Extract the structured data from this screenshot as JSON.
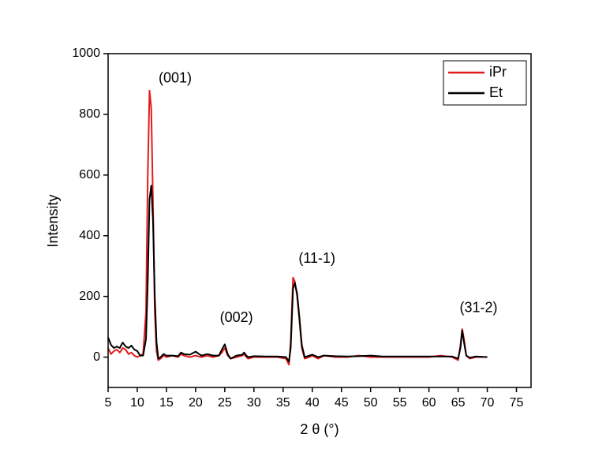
{
  "chart_data": {
    "type": "line",
    "x_label": "2 θ (°)",
    "y_label": "Intensity",
    "xlim": [
      5,
      77.5
    ],
    "ylim": [
      -100,
      1000
    ],
    "xticks": [
      5,
      10,
      15,
      20,
      25,
      30,
      35,
      40,
      45,
      50,
      55,
      60,
      65,
      70,
      75
    ],
    "yticks": [
      0,
      200,
      400,
      600,
      800,
      1000
    ],
    "legend": "upper right",
    "x": [
      5,
      5.5,
      6,
      6.5,
      7,
      7.5,
      8,
      8.5,
      9,
      9.5,
      10,
      10.5,
      11,
      11.5,
      11.8,
      12.1,
      12.4,
      12.7,
      13,
      13.3,
      13.6,
      14,
      14.5,
      15,
      16,
      17,
      17.5,
      18,
      19,
      20,
      21,
      22,
      23,
      24,
      24.5,
      25,
      25.5,
      26,
      27,
      28,
      28.3,
      28.7,
      29,
      30,
      32,
      34,
      35.5,
      36,
      36.3,
      36.7,
      37,
      37.4,
      37.8,
      38.2,
      38.7,
      39.5,
      40,
      41,
      42,
      44,
      46,
      48,
      50,
      52,
      55,
      58,
      60,
      62,
      64,
      65,
      65.4,
      65.7,
      66,
      66.4,
      67,
      68,
      70
    ],
    "series": [
      {
        "name": "iPr",
        "color": "#e31a1c",
        "values": [
          30,
          10,
          20,
          25,
          15,
          30,
          25,
          10,
          15,
          5,
          0,
          5,
          10,
          150,
          600,
          878,
          820,
          500,
          150,
          20,
          -10,
          -5,
          5,
          0,
          5,
          0,
          10,
          5,
          0,
          5,
          0,
          5,
          0,
          5,
          15,
          30,
          5,
          -5,
          0,
          5,
          10,
          0,
          -5,
          0,
          0,
          0,
          -5,
          -25,
          50,
          262,
          250,
          200,
          120,
          30,
          -5,
          0,
          5,
          -5,
          5,
          0,
          0,
          5,
          0,
          0,
          0,
          0,
          0,
          5,
          0,
          -10,
          40,
          92,
          60,
          5,
          -5,
          0,
          0
        ]
      },
      {
        "name": "Et",
        "color": "#000000",
        "values": [
          65,
          40,
          30,
          35,
          30,
          48,
          35,
          30,
          38,
          25,
          20,
          5,
          5,
          60,
          250,
          520,
          565,
          450,
          200,
          50,
          -5,
          0,
          10,
          5,
          5,
          3,
          15,
          10,
          8,
          18,
          5,
          10,
          5,
          5,
          25,
          42,
          10,
          -5,
          5,
          8,
          15,
          5,
          0,
          3,
          2,
          2,
          0,
          -15,
          30,
          225,
          245,
          210,
          130,
          40,
          0,
          5,
          8,
          0,
          5,
          3,
          2,
          3,
          5,
          2,
          2,
          2,
          2,
          2,
          2,
          -5,
          30,
          88,
          50,
          5,
          -2,
          2,
          0
        ]
      }
    ],
    "annotations": [
      {
        "text": "(001)",
        "x": 16.5,
        "y": 917
      },
      {
        "text": "(002)",
        "x": 27,
        "y": 128
      },
      {
        "text": "(11-1)",
        "x": 40.8,
        "y": 323
      },
      {
        "text": "(31-2)",
        "x": 68.5,
        "y": 161
      }
    ]
  }
}
